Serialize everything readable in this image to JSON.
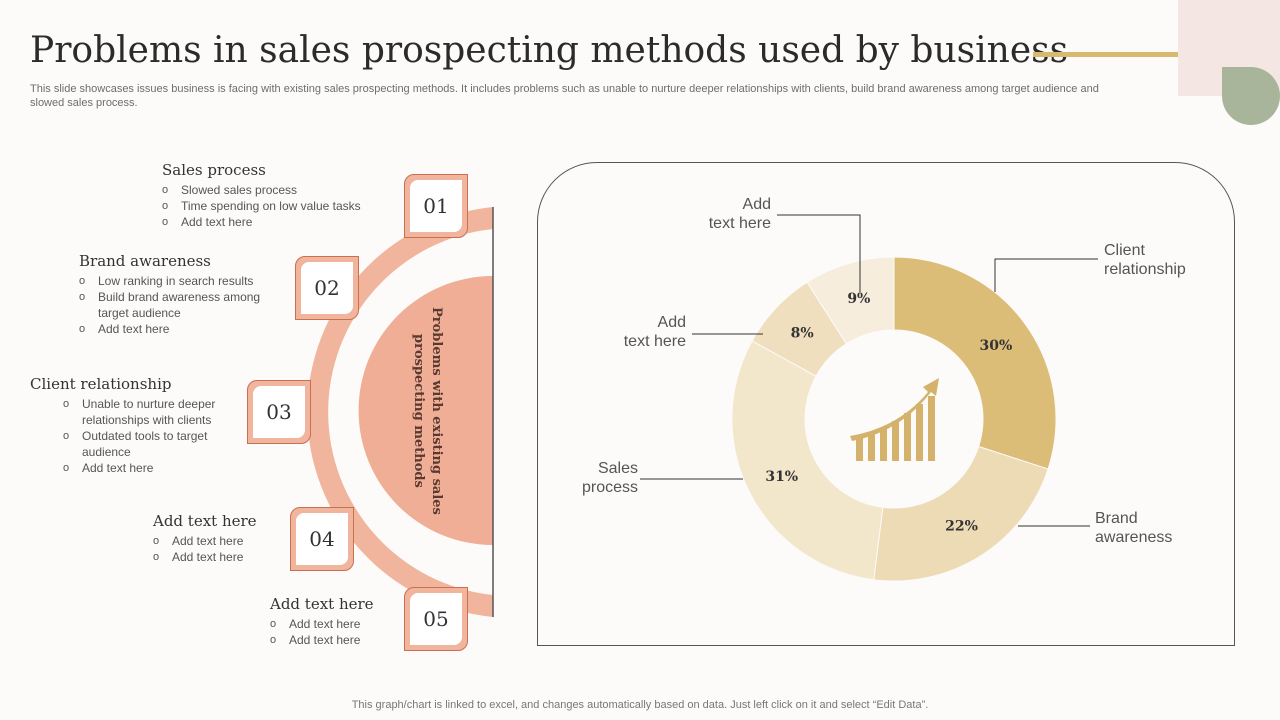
{
  "title": "Problems in sales prospecting methods used by business",
  "subtitle": "This slide showcases issues business is facing with existing sales prospecting methods. It includes problems such as unable to nurture deeper relationships with clients, build brand awareness among target audience and slowed sales process.",
  "center_label": "Problems with existing sales prospecting methods",
  "items": [
    {
      "num": "01",
      "title": "Sales process",
      "bullets": [
        "Slowed sales process",
        "Time spending on low value tasks",
        "Add text here"
      ]
    },
    {
      "num": "02",
      "title": "Brand awareness",
      "bullets": [
        "Low ranking in search results",
        "Build brand awareness among target audience",
        "Add text here"
      ]
    },
    {
      "num": "03",
      "title": "Client relationship",
      "bullets": [
        "Unable to nurture deeper relationships with clients",
        "Outdated tools to target audience",
        "Add text here"
      ]
    },
    {
      "num": "04",
      "title": "Add text here",
      "bullets": [
        "Add text here",
        "Add text here"
      ]
    },
    {
      "num": "05",
      "title": "Add text here",
      "bullets": [
        "Add text here",
        "Add text here"
      ]
    }
  ],
  "chart_data": {
    "type": "pie",
    "variant": "donut",
    "start": "top, clockwise",
    "slices": [
      {
        "label": "Client relationship",
        "value": 30,
        "display": "30%",
        "color": "#dbbd78"
      },
      {
        "label": "Brand awareness",
        "value": 22,
        "display": "22%",
        "color": "#eddbb5"
      },
      {
        "label": "Sales process",
        "value": 31,
        "display": "31%",
        "color": "#f2e6cb"
      },
      {
        "label": "Add text here",
        "value": 8,
        "display": "8%",
        "color": "#f0dfbe"
      },
      {
        "label": "Add text here",
        "value": 9,
        "display": "9%",
        "color": "#f6eddc"
      }
    ],
    "center_icon": "growth-chart-icon"
  },
  "colors": {
    "accent": "#d9b96f",
    "salmon": "#f1b49d",
    "salmon_dark": "#c8704f"
  },
  "footer": "This graph/chart is linked to excel, and changes automatically based on data. Just left click on it and select “Edit Data”."
}
